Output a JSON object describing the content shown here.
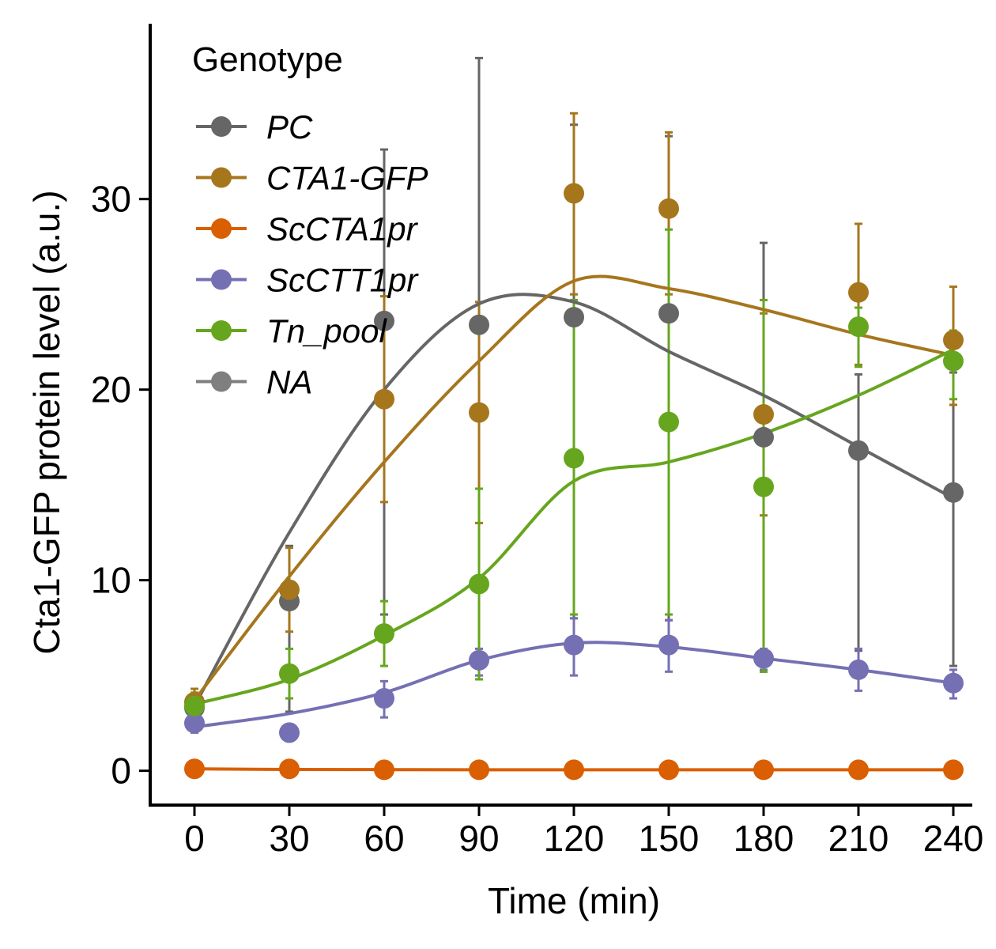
{
  "chart_data": {
    "type": "line",
    "xlabel": "Time (min)",
    "ylabel": "Cta1-GFP protein level (a.u.)",
    "x": [
      0,
      30,
      60,
      90,
      120,
      150,
      180,
      210,
      240
    ],
    "x_ticks": [
      "0",
      "30",
      "60",
      "90",
      "120",
      "150",
      "180",
      "210",
      "240"
    ],
    "y_ticks": [
      "0",
      "10",
      "20",
      "30"
    ],
    "xlim": [
      -14,
      246
    ],
    "ylim": [
      -1.8,
      39.2
    ],
    "grid": false,
    "legend": {
      "title": "Genotype",
      "position": "top-left",
      "entries": [
        "PC",
        "CTA1-GFP",
        "ScCTA1pr",
        "ScCTT1pr",
        "Tn_pool",
        "NA"
      ]
    },
    "series": [
      {
        "name": "PC",
        "color": "#666666",
        "points": [
          3.3,
          8.9,
          23.6,
          23.4,
          23.8,
          24.0,
          17.5,
          16.8,
          14.6
        ],
        "smooth": [
          3.4,
          12.5,
          20.0,
          24.5,
          24.6,
          22.0,
          19.7,
          17.0,
          14.3
        ],
        "err_low": [
          2.6,
          3.1,
          8.2,
          4.8,
          8.0,
          7.9,
          5.2,
          6.3,
          5.5
        ],
        "err_high": [
          4.0,
          11.8,
          32.6,
          37.4,
          33.9,
          33.3,
          27.7,
          20.8,
          20.9
        ]
      },
      {
        "name": "CTA1-GFP",
        "color": "#A6761D",
        "points": [
          3.6,
          9.5,
          19.5,
          18.8,
          30.3,
          29.5,
          18.7,
          25.1,
          22.6
        ],
        "smooth": [
          3.7,
          10.2,
          16.2,
          21.5,
          25.7,
          25.3,
          24.2,
          22.9,
          21.8
        ],
        "err_low": [
          2.9,
          7.3,
          14.1,
          13.0,
          25.0,
          25.0,
          13.4,
          21.3,
          19.2
        ],
        "err_high": [
          4.3,
          11.7,
          24.9,
          24.6,
          34.5,
          33.5,
          24.0,
          28.7,
          25.4
        ]
      },
      {
        "name": "ScCTA1pr",
        "color": "#D95F02",
        "points": [
          0.1,
          0.1,
          0.05,
          0.05,
          0.05,
          0.05,
          0.05,
          0.05,
          0.05
        ],
        "smooth": [
          0.1,
          0.07,
          0.06,
          0.05,
          0.05,
          0.05,
          0.05,
          0.05,
          0.05
        ],
        "err_low": [
          0.0,
          0.0,
          0.0,
          0.0,
          0.0,
          0.0,
          0.0,
          0.0,
          0.0
        ],
        "err_high": [
          0.2,
          0.2,
          0.1,
          0.1,
          0.1,
          0.1,
          0.1,
          0.1,
          0.1
        ]
      },
      {
        "name": "ScCTT1pr",
        "color": "#7570B3",
        "points": [
          2.5,
          2.0,
          3.8,
          5.8,
          6.6,
          6.6,
          5.9,
          5.3,
          4.6
        ],
        "smooth": [
          2.3,
          3.0,
          4.1,
          5.8,
          6.7,
          6.5,
          5.9,
          5.3,
          4.6
        ],
        "err_low": [
          2.0,
          1.8,
          2.8,
          5.0,
          5.0,
          5.2,
          5.3,
          4.2,
          3.8
        ],
        "err_high": [
          3.0,
          2.3,
          4.7,
          6.4,
          8.0,
          7.9,
          6.4,
          6.4,
          5.3
        ]
      },
      {
        "name": "Tn_pool",
        "color": "#66A61E",
        "points": [
          3.4,
          5.1,
          7.2,
          9.8,
          16.4,
          18.3,
          14.9,
          23.3,
          21.5
        ],
        "smooth": [
          3.5,
          4.8,
          7.1,
          10.1,
          15.2,
          16.2,
          17.7,
          19.7,
          22.1
        ],
        "err_low": [
          2.8,
          3.8,
          5.5,
          4.8,
          8.2,
          8.2,
          5.2,
          21.2,
          19.5
        ],
        "err_high": [
          4.1,
          6.4,
          8.9,
          14.8,
          24.7,
          28.4,
          24.7,
          24.3,
          23.1
        ]
      }
    ]
  }
}
